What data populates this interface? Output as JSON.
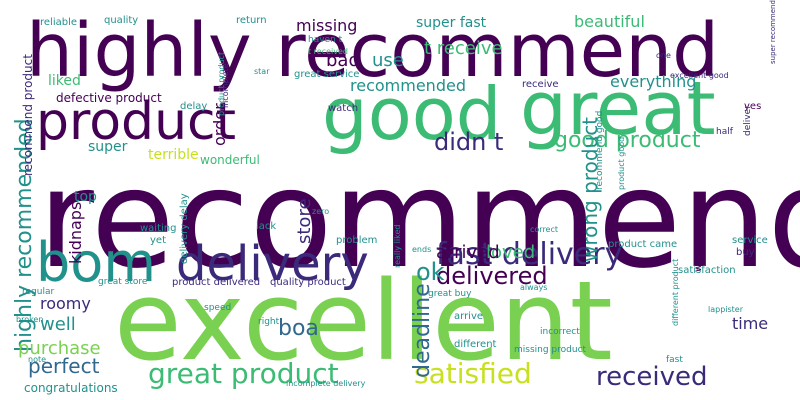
{
  "palette": {
    "background": "#ffffff",
    "dark_purple": "#440154",
    "indigo": "#3b2a7a",
    "blue": "#31688e",
    "teal": "#21918c",
    "green": "#3cbb75",
    "lime": "#7ad151",
    "yellow": "#c8e020"
  },
  "words": [
    "recommend",
    "excellent",
    "highly recommend",
    "product",
    "good",
    "great",
    "bom",
    "delivery",
    "fast delivery",
    "satisfied",
    "great product",
    "received",
    "delivered",
    "highly recommended",
    "didn t",
    "good product",
    "wrong product",
    "perfect",
    "purchase",
    "boa",
    "deadline",
    "time",
    "ok",
    "loved",
    "arrived",
    "store",
    "kidnaps",
    "well",
    "roomy",
    "missing",
    "super fast",
    "beautiful",
    "t receive",
    "bad",
    "use",
    "recommended",
    "everything",
    "liked",
    "order",
    "defective product",
    "recommend product",
    "super",
    "terrible",
    "top",
    "wonderful",
    "reliable",
    "quality",
    "return",
    "haven t",
    "t received",
    "star",
    "great service",
    "incomplete",
    "watch",
    "receive",
    "delay",
    "product product",
    "excellent good",
    "super recommend",
    "one",
    "yes",
    "half",
    "deliver",
    "recommend good",
    "product good",
    "service",
    "buy",
    "yet",
    "waiting",
    "lack",
    "zero",
    "problem",
    "product came",
    "satisfaction",
    "wrong",
    "lappister",
    "delivery delay",
    "great store",
    "product delivered",
    "quality product",
    "regular",
    "great buy",
    "always",
    "broken",
    "speed",
    "right",
    "arrive",
    "different",
    "incorrect",
    "missing product",
    "fast",
    "different product",
    "note",
    "congratulations",
    "incomplete delivery",
    "correct",
    "really liked",
    "ends"
  ]
}
